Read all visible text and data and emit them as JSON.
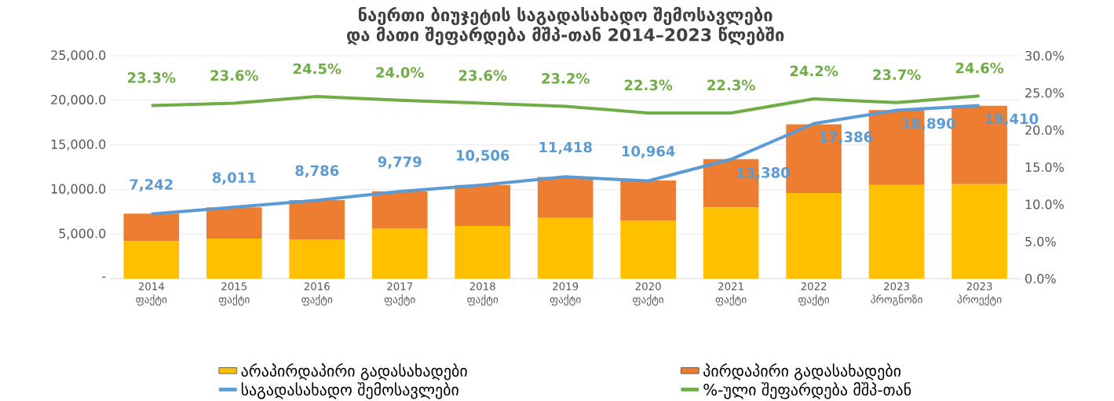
{
  "chart_data": {
    "type": "bar",
    "title": "ნაერთი ბიუჯეტის საგადასახადო შემოსავლები და მათი შეფარდება მშპ-თან 2014–2023 წლებში",
    "categories": [
      "2014 ფაქტი",
      "2015 ფაქტი",
      "2016 ფაქტი",
      "2017 ფაქტი",
      "2018 ფაქტი",
      "2019 ფაქტი",
      "2020 ფაქტი",
      "2021 ფაქტი",
      "2022 ფაქტი",
      "2023 პროგნოზი",
      "2023 პროექტი"
    ],
    "stacked": true,
    "series": [
      {
        "name": "არაპირდაპირი გადასახადები",
        "color": "#ffc000",
        "values": [
          4200,
          4500,
          4400,
          5600,
          5900,
          6800,
          6500,
          8000,
          9600,
          10500,
          10600
        ]
      },
      {
        "name": "პირდაპირი გადასახადები",
        "color": "#ed7d31",
        "values": [
          3100,
          3500,
          4400,
          4200,
          4600,
          4600,
          4500,
          5400,
          7700,
          8400,
          8800
        ]
      },
      {
        "name": "საგადასახადო შემოსავლები",
        "type": "line",
        "color": "#5b9bd5",
        "values": [
          7242,
          8011,
          8786,
          9779,
          10506,
          11418,
          10964,
          13380,
          17386,
          18890,
          19410
        ],
        "value_labels": [
          "7,242",
          "8,011",
          "8,786",
          "9,779",
          "10,506",
          "11,418",
          "10,964",
          "13,380",
          "17,386",
          "18,890",
          "19,410"
        ]
      },
      {
        "name": "%-ული შეფარდება მშპ-თან",
        "type": "line",
        "axis": "y2",
        "color": "#70ad47",
        "values": [
          23.3,
          23.6,
          24.5,
          24.0,
          23.6,
          23.2,
          22.3,
          22.3,
          24.2,
          23.7,
          24.6
        ],
        "value_labels": [
          "23.3%",
          "23.6%",
          "24.5%",
          "24.0%",
          "23.6%",
          "23.2%",
          "22.3%",
          "22.3%",
          "24.2%",
          "23.7%",
          "24.6%"
        ]
      }
    ],
    "ylim": [
      0,
      25000
    ],
    "yticks": [
      {
        "value": 0,
        "label": "-"
      },
      {
        "value": 5000,
        "label": "5,000.0"
      },
      {
        "value": 10000,
        "label": "10,000.0"
      },
      {
        "value": 15000,
        "label": "15,000.0"
      },
      {
        "value": 20000,
        "label": "20,000.0"
      },
      {
        "value": 25000,
        "label": "25,000.0"
      }
    ],
    "y2lim": [
      0,
      30
    ],
    "y2ticks": [
      {
        "value": 0,
        "label": "0.0%"
      },
      {
        "value": 5,
        "label": "5.0%"
      },
      {
        "value": 10,
        "label": "10.0%"
      },
      {
        "value": 15,
        "label": "15.0%"
      },
      {
        "value": 20,
        "label": "20.0%"
      },
      {
        "value": 25,
        "label": "25.0%"
      },
      {
        "value": 30,
        "label": "30.0%"
      }
    ],
    "grid": "y",
    "legend": "bottom",
    "marker": "none",
    "line_style": "solid"
  }
}
